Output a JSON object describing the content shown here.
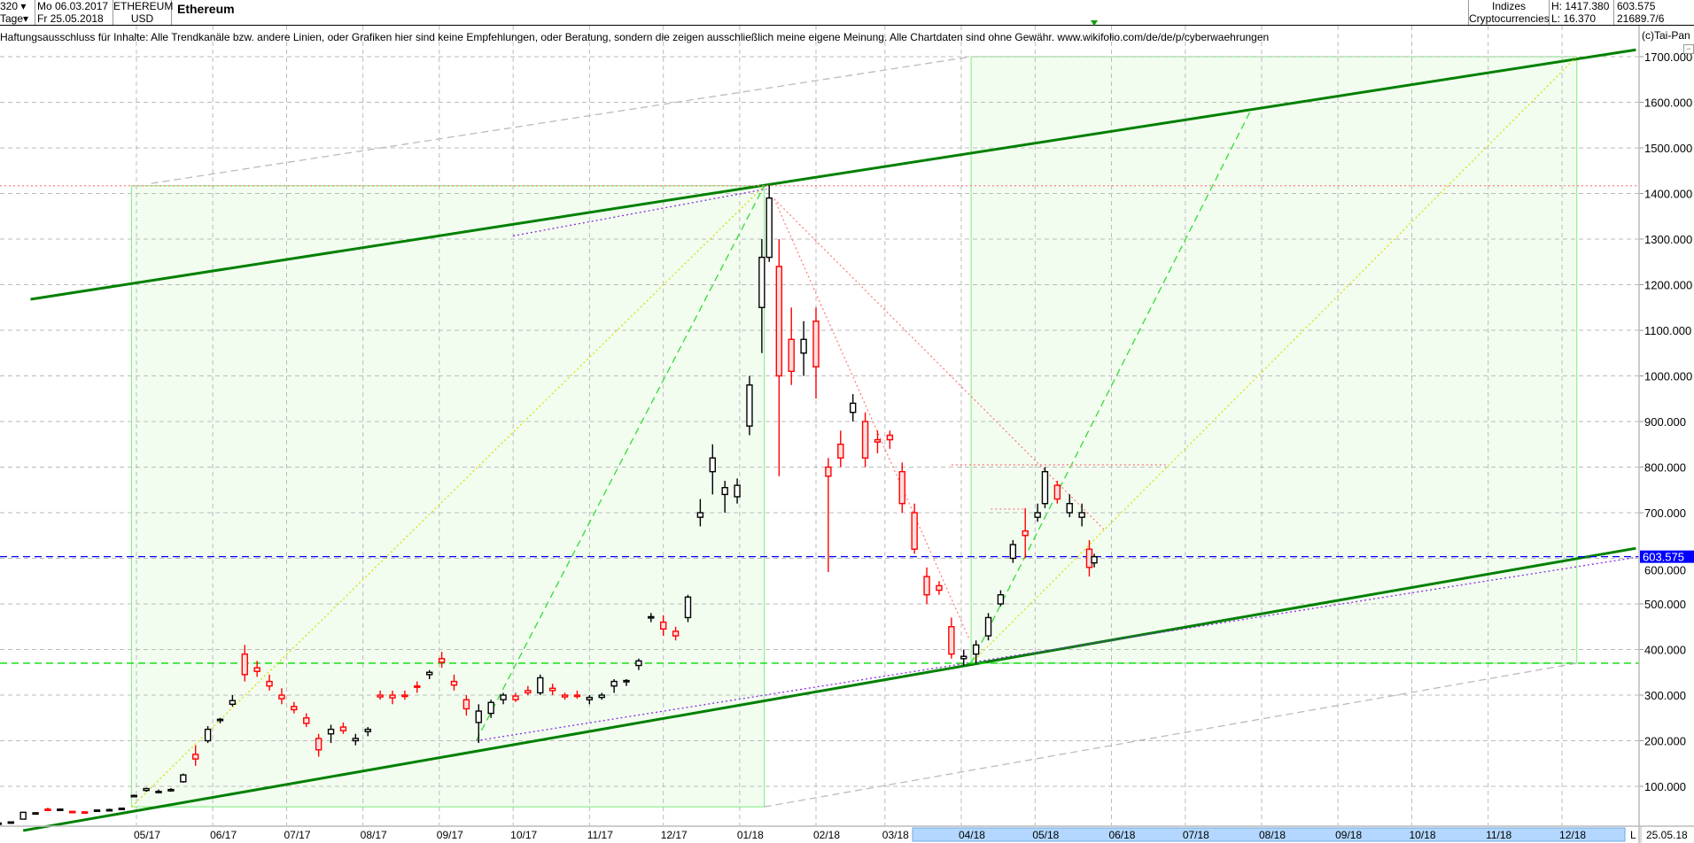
{
  "header": {
    "periods": "320",
    "unit": "Tage",
    "date_from": "Mo 06.03.2017",
    "date_to": "Fr 25.05.2018",
    "symbol": "ETHEREUM",
    "currency": "USD",
    "name": "Ethereum",
    "category1": "Indizes",
    "category2": "Cryptocurrencies",
    "high": "H: 1417.380",
    "low": "L: 16.370",
    "last": "603.575",
    "extra": "21689.7/6"
  },
  "disclaimer": "Haftungsausschluss für Inhalte: Alle Trendkanäle bzw. andere Linien, oder Grafiken hier sind keine Empfehlungen, oder Beratung, sondern die zeigen ausschließlich meine eigene Meinung. Alle Chartdaten sind ohne Gewähr.  www.wikifolio.com/de/de/p/cyberwaehrungen",
  "copyright": "(c)Tai-Pan",
  "axis_end_marker": "L",
  "axis_end_date": "25.05.18",
  "colors": {
    "up": "#000000",
    "down": "#ff0000",
    "channel": "#008000",
    "last_price": "#0000ff",
    "grid": "#bbbbbb",
    "zone_fill": "#f2fdf0",
    "zone_border": "#90ee90",
    "timebar": "#b3d7ff"
  },
  "chart_data": {
    "type": "candlestick",
    "ylim": [
      0,
      1750
    ],
    "yticks": [
      "100.000",
      "200.000",
      "300.000",
      "400.000",
      "500.000",
      "600.000",
      "700.000",
      "800.000",
      "900.000",
      "1000.000",
      "1100.000",
      "1200.000",
      "1300.000",
      "1400.000",
      "1500.000",
      "1600.000",
      "1700.000"
    ],
    "ytick_values": [
      100,
      200,
      300,
      400,
      500,
      600,
      700,
      800,
      900,
      1000,
      1100,
      1200,
      1300,
      1400,
      1500,
      1600,
      1700
    ],
    "xticks": [
      "05/17",
      "06/17",
      "07/17",
      "08/17",
      "09/17",
      "10/17",
      "11/17",
      "12/17",
      "01/18",
      "02/18",
      "03/18",
      "04/18",
      "05/18",
      "06/18",
      "07/18",
      "08/18",
      "09/18",
      "10/18",
      "11/18",
      "12/18"
    ],
    "xtick_dates": [
      "2017-05-01",
      "2017-06-01",
      "2017-07-01",
      "2017-08-01",
      "2017-09-01",
      "2017-10-01",
      "2017-11-01",
      "2017-12-01",
      "2018-01-01",
      "2018-02-01",
      "2018-03-01",
      "2018-04-01",
      "2018-05-01",
      "2018-06-01",
      "2018-07-01",
      "2018-08-01",
      "2018-09-01",
      "2018-10-01",
      "2018-11-01",
      "2018-12-01"
    ],
    "grid": true,
    "last_price_label": "603.575",
    "last_price": 603.575,
    "candles": [
      [
        "2017-03-06",
        19,
        20,
        16.37,
        19.5
      ],
      [
        "2017-03-11",
        19.5,
        23,
        19,
        22
      ],
      [
        "2017-03-16",
        28,
        44,
        28,
        43
      ],
      [
        "2017-03-21",
        42,
        43,
        40,
        42
      ],
      [
        "2017-03-26",
        50,
        53,
        47,
        49
      ],
      [
        "2017-03-31",
        49,
        51,
        47,
        50
      ],
      [
        "2017-04-05",
        45,
        46,
        43,
        44
      ],
      [
        "2017-04-10",
        44,
        45,
        42,
        43
      ],
      [
        "2017-04-15",
        48,
        49,
        47,
        48
      ],
      [
        "2017-04-20",
        48,
        51,
        47,
        49
      ],
      [
        "2017-04-25",
        50,
        53,
        49,
        52
      ],
      [
        "2017-04-30",
        78,
        82,
        76,
        80
      ],
      [
        "2017-05-05",
        91,
        97,
        88,
        95
      ],
      [
        "2017-05-10",
        88,
        93,
        86,
        89
      ],
      [
        "2017-05-15",
        91,
        96,
        88,
        93
      ],
      [
        "2017-05-20",
        110,
        128,
        108,
        125
      ],
      [
        "2017-05-25",
        170,
        190,
        145,
        160
      ],
      [
        "2017-05-30",
        200,
        232,
        195,
        225
      ],
      [
        "2017-06-04",
        245,
        250,
        238,
        247
      ],
      [
        "2017-06-09",
        280,
        300,
        275,
        288
      ],
      [
        "2017-06-14",
        390,
        410,
        330,
        345
      ],
      [
        "2017-06-19",
        360,
        375,
        340,
        352
      ],
      [
        "2017-06-24",
        330,
        345,
        310,
        320
      ],
      [
        "2017-06-29",
        300,
        315,
        280,
        292
      ],
      [
        "2017-07-04",
        275,
        285,
        260,
        268
      ],
      [
        "2017-07-09",
        250,
        260,
        230,
        238
      ],
      [
        "2017-07-14",
        205,
        215,
        165,
        180
      ],
      [
        "2017-07-19",
        215,
        235,
        195,
        225
      ],
      [
        "2017-07-24",
        230,
        240,
        215,
        222
      ],
      [
        "2017-07-29",
        200,
        215,
        190,
        205
      ],
      [
        "2017-08-03",
        220,
        230,
        210,
        225
      ],
      [
        "2017-08-08",
        300,
        310,
        290,
        296
      ],
      [
        "2017-08-13",
        300,
        310,
        280,
        294
      ],
      [
        "2017-08-18",
        300,
        310,
        290,
        297
      ],
      [
        "2017-08-23",
        320,
        330,
        305,
        318
      ],
      [
        "2017-08-28",
        345,
        355,
        335,
        350
      ],
      [
        "2017-09-02",
        380,
        395,
        360,
        372
      ],
      [
        "2017-09-07",
        330,
        345,
        310,
        322
      ],
      [
        "2017-09-12",
        290,
        300,
        255,
        270
      ],
      [
        "2017-09-17",
        240,
        280,
        195,
        265
      ],
      [
        "2017-09-22",
        260,
        290,
        250,
        284
      ],
      [
        "2017-09-27",
        290,
        305,
        280,
        300
      ],
      [
        "2017-10-02",
        298,
        305,
        285,
        290
      ],
      [
        "2017-10-07",
        310,
        320,
        300,
        305
      ],
      [
        "2017-10-12",
        305,
        345,
        300,
        338
      ],
      [
        "2017-10-17",
        315,
        325,
        300,
        310
      ],
      [
        "2017-10-22",
        300,
        305,
        290,
        296
      ],
      [
        "2017-10-27",
        300,
        310,
        292,
        298
      ],
      [
        "2017-11-01",
        290,
        300,
        280,
        295
      ],
      [
        "2017-11-06",
        295,
        305,
        290,
        300
      ],
      [
        "2017-11-11",
        320,
        335,
        305,
        330
      ],
      [
        "2017-11-16",
        330,
        335,
        320,
        332
      ],
      [
        "2017-11-21",
        365,
        380,
        355,
        375
      ],
      [
        "2017-11-26",
        470,
        480,
        460,
        472
      ],
      [
        "2017-12-01",
        460,
        475,
        430,
        445
      ],
      [
        "2017-12-06",
        440,
        450,
        420,
        430
      ],
      [
        "2017-12-11",
        470,
        520,
        460,
        515
      ],
      [
        "2017-12-16",
        690,
        730,
        670,
        700
      ],
      [
        "2017-12-21",
        790,
        850,
        740,
        820
      ],
      [
        "2017-12-26",
        740,
        770,
        700,
        755
      ],
      [
        "2017-12-31",
        735,
        775,
        720,
        760
      ],
      [
        "2018-01-05",
        890,
        1000,
        870,
        980
      ],
      [
        "2018-01-10",
        1150,
        1300,
        1050,
        1260
      ],
      [
        "2018-01-13",
        1260,
        1417.38,
        1250,
        1390
      ],
      [
        "2018-01-17",
        1240,
        1300,
        780,
        1000
      ],
      [
        "2018-01-22",
        1080,
        1150,
        980,
        1010
      ],
      [
        "2018-01-27",
        1050,
        1120,
        1000,
        1080
      ],
      [
        "2018-02-01",
        1120,
        1150,
        950,
        1020
      ],
      [
        "2018-02-06",
        800,
        820,
        570,
        780
      ],
      [
        "2018-02-11",
        850,
        880,
        800,
        820
      ],
      [
        "2018-02-16",
        920,
        960,
        900,
        940
      ],
      [
        "2018-02-21",
        900,
        920,
        800,
        820
      ],
      [
        "2018-02-26",
        860,
        880,
        830,
        855
      ],
      [
        "2018-03-03",
        870,
        880,
        840,
        860
      ],
      [
        "2018-03-08",
        790,
        810,
        700,
        720
      ],
      [
        "2018-03-13",
        700,
        720,
        610,
        620
      ],
      [
        "2018-03-18",
        560,
        580,
        500,
        520
      ],
      [
        "2018-03-23",
        540,
        550,
        520,
        530
      ],
      [
        "2018-03-28",
        450,
        470,
        380,
        390
      ],
      [
        "2018-04-02",
        380,
        400,
        365,
        385
      ],
      [
        "2018-04-07",
        390,
        420,
        370,
        410
      ],
      [
        "2018-04-12",
        430,
        480,
        420,
        470
      ],
      [
        "2018-04-17",
        500,
        530,
        495,
        520
      ],
      [
        "2018-04-22",
        600,
        640,
        590,
        630
      ],
      [
        "2018-04-27",
        660,
        710,
        600,
        650
      ],
      [
        "2018-05-02",
        690,
        720,
        680,
        700
      ],
      [
        "2018-05-05",
        720,
        800,
        710,
        790
      ],
      [
        "2018-05-10",
        760,
        770,
        720,
        730
      ],
      [
        "2018-05-15",
        700,
        740,
        690,
        720
      ],
      [
        "2018-05-20",
        690,
        720,
        670,
        700
      ],
      [
        "2018-05-23",
        620,
        640,
        560,
        580
      ],
      [
        "2018-05-25",
        590,
        610,
        580,
        603.575
      ]
    ],
    "zones": [
      {
        "from": "2017-04-29",
        "to": "2018-01-11",
        "low": 55,
        "high": 1417
      },
      {
        "from": "2018-04-05",
        "to": "2018-12-07",
        "low": 370,
        "high": 1700
      }
    ],
    "lines": [
      {
        "kind": "channel-upper",
        "color": "#008000",
        "style": "solid",
        "p1": [
          "2017-03-19",
          1168
        ],
        "p2": [
          "2018-12-31",
          1715
        ]
      },
      {
        "kind": "channel-lower",
        "color": "#008000",
        "style": "solid",
        "p1": [
          "2017-03-16",
          3
        ],
        "p2": [
          "2018-12-31",
          622
        ]
      },
      {
        "kind": "channel-upper-alt",
        "color": "#8a2be2",
        "style": "dotted",
        "p1": [
          "2017-10-01",
          1307
        ],
        "p2": [
          "2018-01-12",
          1410
        ]
      },
      {
        "kind": "channel-lower-alt",
        "color": "#8a2be2",
        "style": "dotted",
        "p1": [
          "2017-09-16",
          200
        ],
        "p2": [
          "2018-12-31",
          602
        ]
      },
      {
        "kind": "high-level",
        "color": "#ff8080",
        "style": "dotted",
        "p1": [
          "2017-03-06",
          1417
        ],
        "p2": [
          "2019-01-10",
          1417
        ]
      },
      {
        "kind": "support-level",
        "color": "#00dd00",
        "style": "dashed",
        "p1": [
          "2017-03-06",
          370
        ],
        "p2": [
          "2019-01-10",
          370
        ]
      },
      {
        "kind": "last-price",
        "color": "#0000ff",
        "style": "dashed",
        "p1": [
          "2017-03-06",
          603.575
        ],
        "p2": [
          "2019-01-10",
          603.575
        ]
      },
      {
        "kind": "gray-upper",
        "color": "#bbbbbb",
        "style": "dashed",
        "p1": [
          "2017-05-07",
          1422
        ],
        "p2": [
          "2018-04-05",
          1700
        ]
      },
      {
        "kind": "gray-lower",
        "color": "#bbbbbb",
        "style": "dashed",
        "p1": [
          "2018-01-11",
          55
        ],
        "p2": [
          "2018-12-07",
          370
        ]
      },
      {
        "kind": "zone1-diagonal",
        "color": "#dddd00",
        "style": "dotted",
        "p1": [
          "2017-04-29",
          55
        ],
        "p2": [
          "2018-01-11",
          1417
        ]
      },
      {
        "kind": "zone2-diagonal",
        "color": "#dddd00",
        "style": "dotted",
        "p1": [
          "2018-04-05",
          370
        ],
        "p2": [
          "2018-12-07",
          1700
        ]
      },
      {
        "kind": "up-trend-1",
        "color": "#33dd33",
        "style": "dashed",
        "p1": [
          "2017-09-16",
          200
        ],
        "p2": [
          "2018-01-11",
          1417
        ]
      },
      {
        "kind": "up-trend-2",
        "color": "#33dd33",
        "style": "dashed",
        "p1": [
          "2018-04-05",
          370
        ],
        "p2": [
          "2018-07-28",
          1587
        ]
      },
      {
        "kind": "fan-down-1",
        "color": "#ff8080",
        "style": "dotted",
        "p1": [
          "2018-01-15",
          1388
        ],
        "p2": [
          "2018-04-04",
          426
        ]
      },
      {
        "kind": "fan-down-2",
        "color": "#ff8080",
        "style": "dotted",
        "p1": [
          "2018-01-15",
          1388
        ],
        "p2": [
          "2018-05-29",
          663
        ]
      },
      {
        "kind": "resistance-800",
        "color": "#ff8080",
        "style": "dotted",
        "p1": [
          "2018-03-28",
          805
        ],
        "p2": [
          "2018-06-23",
          805
        ]
      },
      {
        "kind": "resistance-700",
        "color": "#ff8080",
        "style": "dotted",
        "p1": [
          "2018-04-13",
          708
        ],
        "p2": [
          "2018-04-27",
          708
        ]
      }
    ]
  }
}
